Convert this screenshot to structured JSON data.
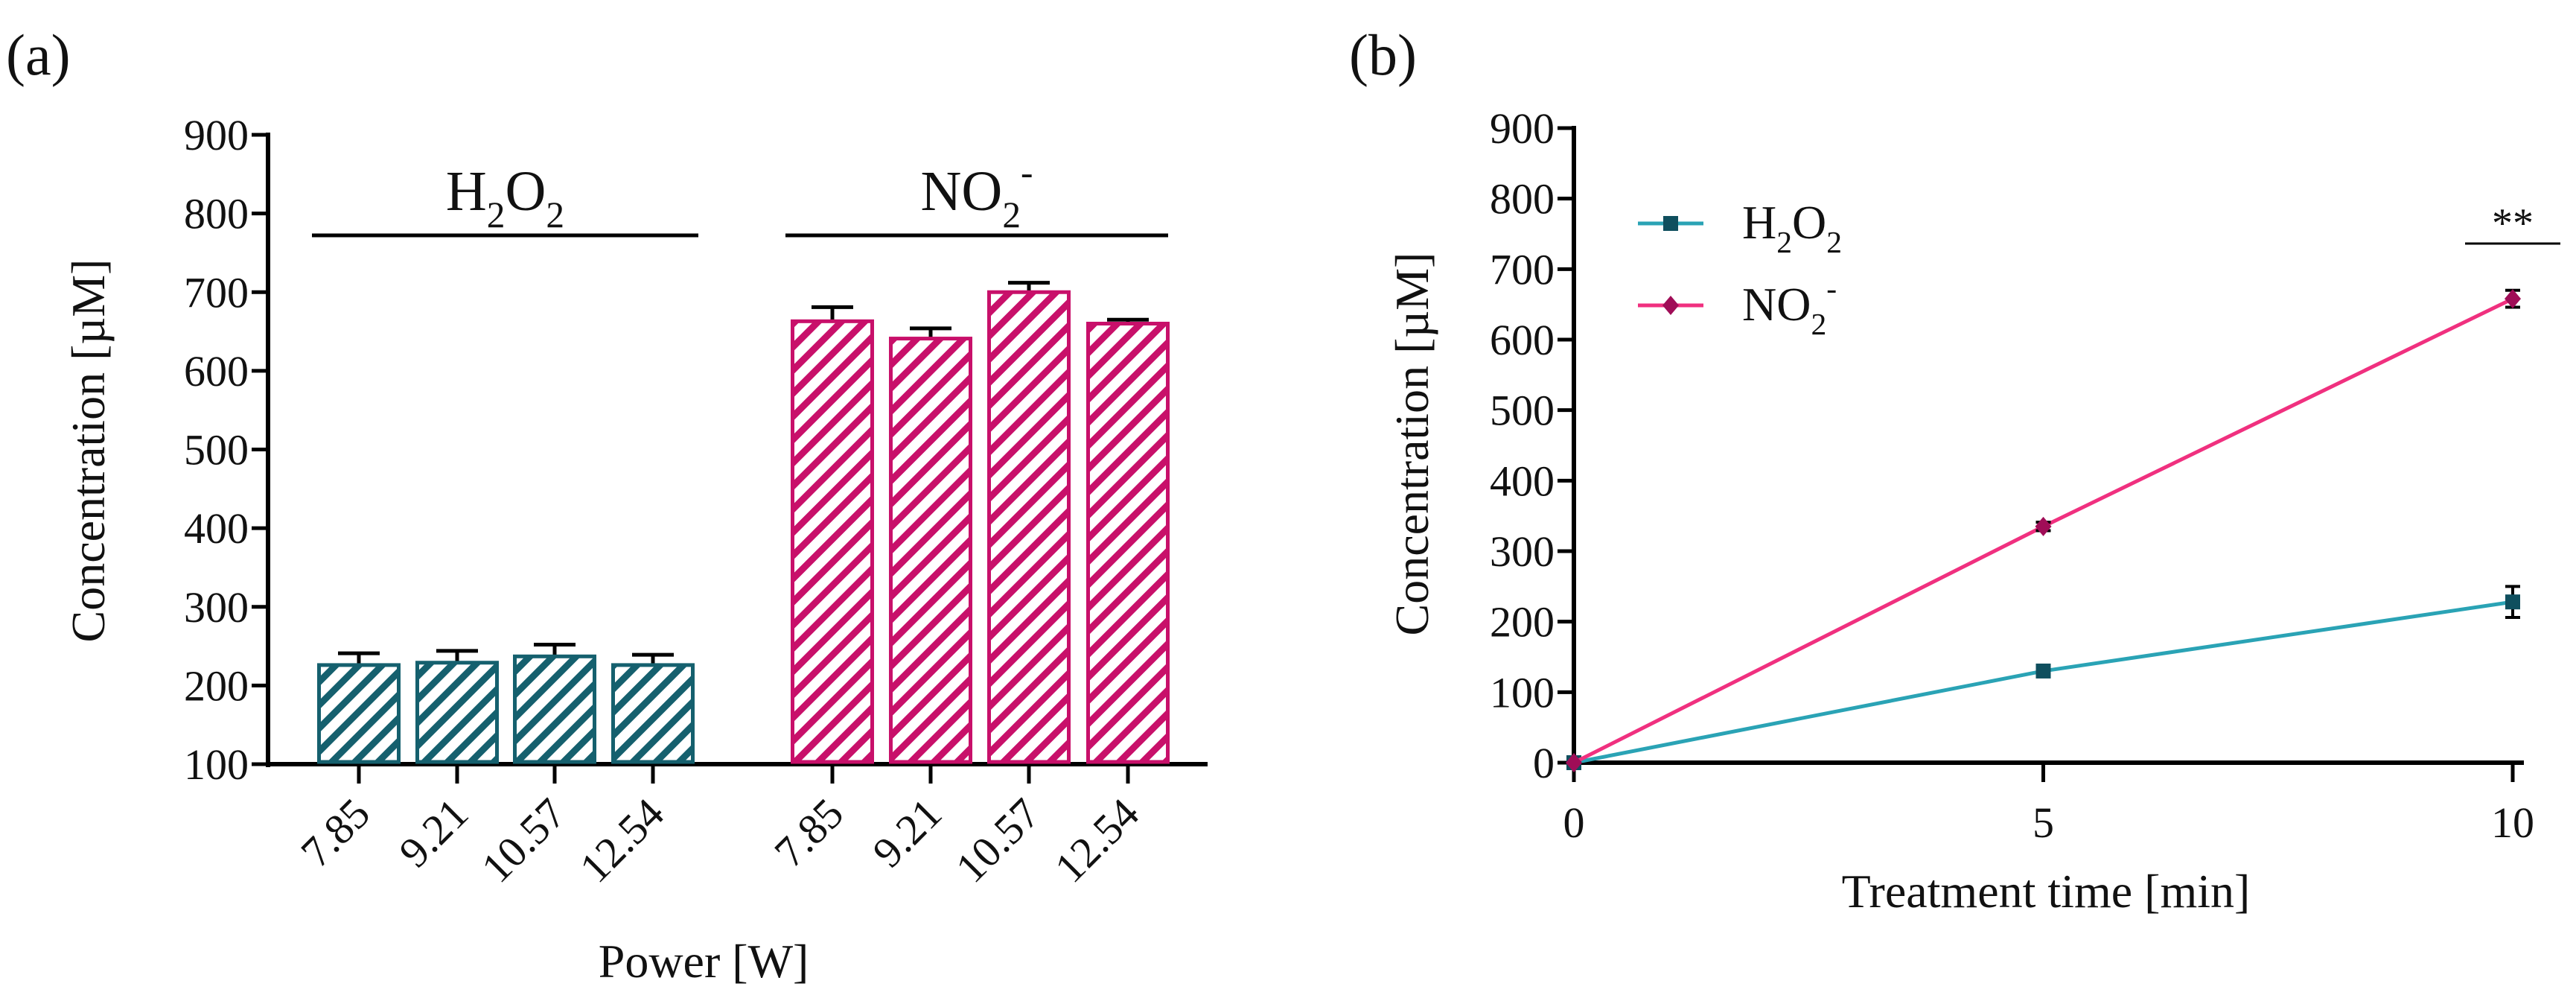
{
  "panels": {
    "a": "(a)",
    "b": "(b)"
  },
  "colors": {
    "h2o2_bar": "#15606e",
    "no2_bar": "#c8106a",
    "h2o2_line": "#2aa3b5",
    "no2_line": "#f0307f",
    "h2o2_marker": "#0f4f5e",
    "no2_marker": "#a00d57"
  },
  "chart_data": [
    {
      "type": "bar",
      "title": "(a)",
      "xlabel": "Power [W]",
      "ylabel": "Concentration [µM]",
      "ylim": [
        100,
        900
      ],
      "yticks": [
        100,
        200,
        300,
        400,
        500,
        600,
        700,
        800,
        900
      ],
      "groups": [
        {
          "label_main": "H",
          "label_sub1": "2",
          "label_mid": "O",
          "label_sub2": "2",
          "label_sup": "",
          "name": "H2O2",
          "categories": [
            "7.85",
            "9.21",
            "10.57",
            "12.54"
          ],
          "values": [
            226,
            229,
            237,
            226
          ],
          "errors": [
            15,
            15,
            15,
            13
          ]
        },
        {
          "label_main": "NO",
          "label_sub1": "2",
          "label_mid": "",
          "label_sub2": "",
          "label_sup": "-",
          "name": "NO2-",
          "categories": [
            "7.85",
            "9.21",
            "10.57",
            "12.54"
          ],
          "values": [
            663,
            641,
            700,
            660
          ],
          "errors": [
            18,
            13,
            12,
            5
          ]
        }
      ]
    },
    {
      "type": "line",
      "title": "(b)",
      "xlabel": "Treatment time [min]",
      "ylabel": "Concentration [µM]",
      "xlim": [
        0,
        10
      ],
      "ylim": [
        0,
        900
      ],
      "xticks": [
        0,
        5,
        10
      ],
      "yticks": [
        0,
        100,
        200,
        300,
        400,
        500,
        600,
        700,
        800,
        900
      ],
      "legend_position": "top-left",
      "x": [
        0,
        5,
        10
      ],
      "series": [
        {
          "name": "H2O2",
          "legend_main": "H",
          "legend_sub1": "2",
          "legend_mid": "O",
          "legend_sub2": "2",
          "legend_sup": "",
          "marker": "square",
          "values": [
            0,
            130,
            228
          ],
          "errors": [
            0,
            8,
            22
          ]
        },
        {
          "name": "NO2-",
          "legend_main": "NO",
          "legend_sub1": "2",
          "legend_mid": "",
          "legend_sub2": "",
          "legend_sup": "-",
          "marker": "diamond",
          "values": [
            0,
            335,
            658
          ],
          "errors": [
            0,
            6,
            12
          ]
        }
      ],
      "annotation": "**"
    }
  ]
}
